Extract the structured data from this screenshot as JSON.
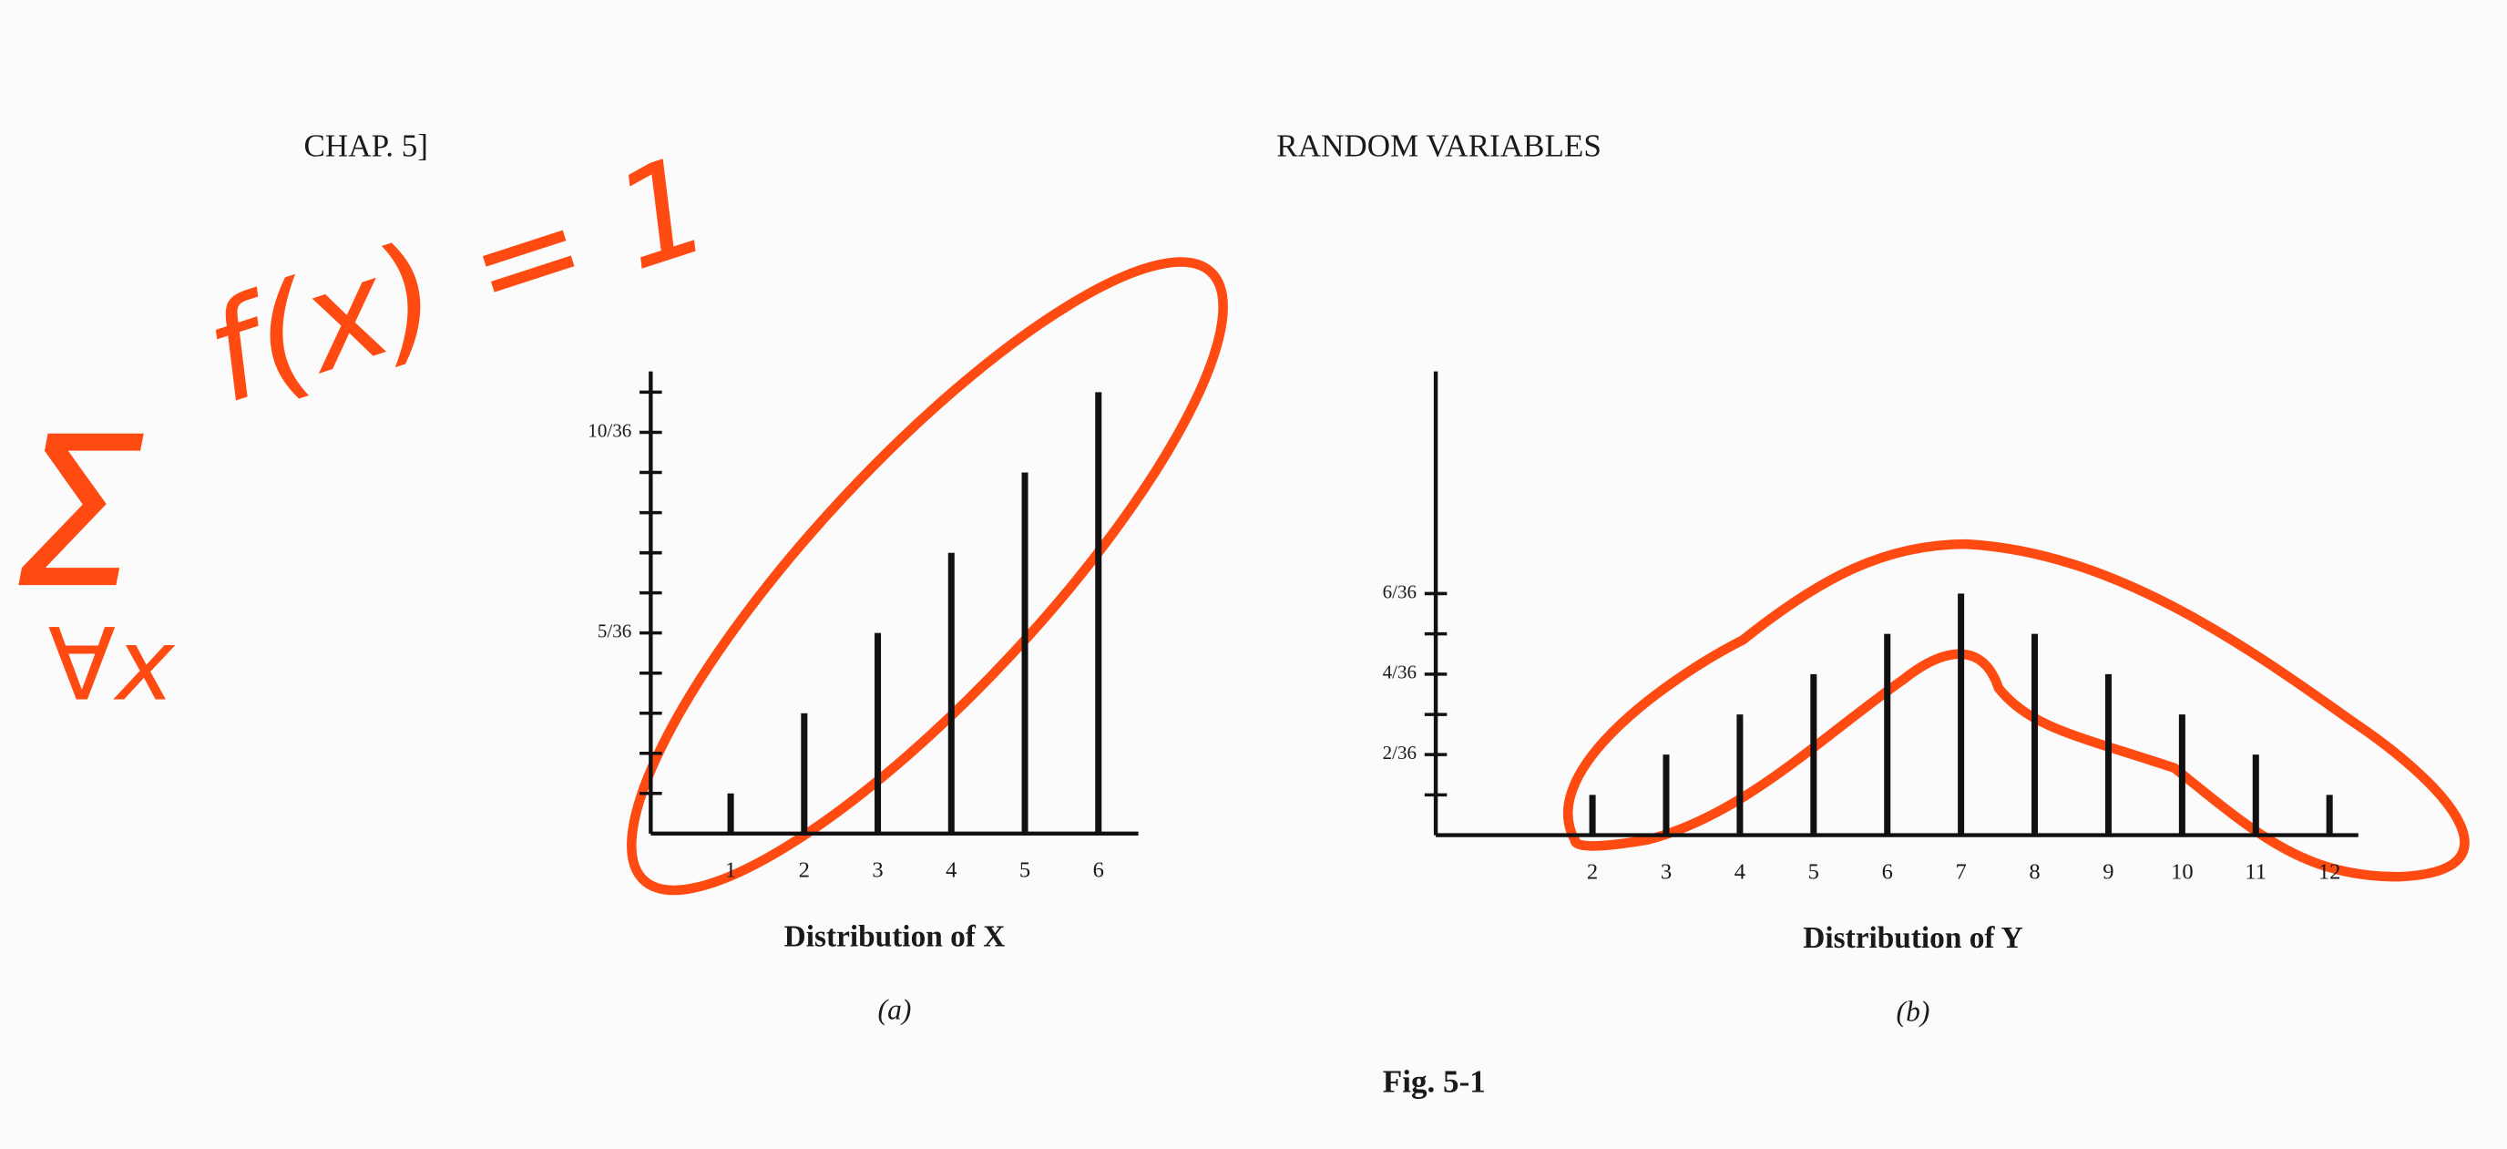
{
  "header": {
    "left": "CHAP. 5]",
    "title": "RANDOM VARIABLES"
  },
  "handwriting": {
    "sum": "Σ",
    "index": "∀x",
    "expression": "f(x) = 1"
  },
  "chart_data": [
    {
      "type": "bar",
      "x_label": "Distribution of X",
      "caption": "(a)",
      "categories": [
        "1",
        "2",
        "3",
        "4",
        "5",
        "6"
      ],
      "values": [
        0.0278,
        0.0833,
        0.1389,
        0.1944,
        0.25,
        0.3056
      ],
      "color": "#111111",
      "ylim": [
        0,
        0.32
      ],
      "yticks": [
        {
          "value": 0.1389,
          "label": "5/36"
        },
        {
          "value": 0.2778,
          "label": "10/36"
        }
      ],
      "yminorticks": [
        0.0278,
        0.0556,
        0.0833,
        0.1111,
        0.1667,
        0.1944,
        0.2222,
        0.25,
        0.3056
      ]
    },
    {
      "type": "bar",
      "x_label": "Distribution of Y",
      "caption": "(b)",
      "categories": [
        "2",
        "3",
        "4",
        "5",
        "6",
        "7",
        "8",
        "9",
        "10",
        "11",
        "12"
      ],
      "values": [
        0.0278,
        0.0556,
        0.0833,
        0.1111,
        0.1389,
        0.1667,
        0.1389,
        0.1111,
        0.0833,
        0.0556,
        0.0278
      ],
      "color": "#111111",
      "ylim": [
        0,
        0.32
      ],
      "yticks": [
        {
          "value": 0.0556,
          "label": "2/36"
        },
        {
          "value": 0.1111,
          "label": "4/36"
        },
        {
          "value": 0.1667,
          "label": "6/36"
        }
      ],
      "yminorticks": [
        0.0278,
        0.0833,
        0.1389
      ]
    }
  ],
  "figure_caption": "Fig. 5-1"
}
